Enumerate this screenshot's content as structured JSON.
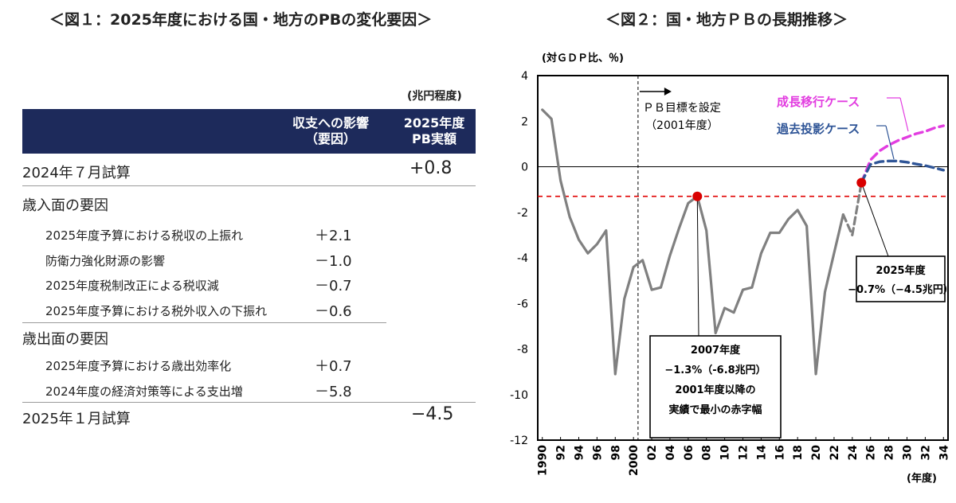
{
  "left_title": "＜図１：2025年度における国・地方のPBの変化要因＞",
  "right_title": "＜図２：国・地方ＰＢの長期推移＞",
  "table": {
    "unit": "(兆円程度)",
    "col1_header": [
      "収支への影響",
      "（要因）"
    ],
    "col2_header": [
      "2025年度",
      "PB実額"
    ],
    "start_label": "2024年７月試算",
    "start_value": "+0.8",
    "revenue_heading": "歳入面の要因",
    "revenue_items": [
      {
        "label": "2025年度予算における税収の上振れ",
        "value": "＋2.1"
      },
      {
        "label": "防衛力強化財源の影響",
        "value": "－1.0"
      },
      {
        "label": "2025年度税制改正による税収減",
        "value": "－0.7"
      },
      {
        "label": "2025年度予算における税外収入の下振れ",
        "value": "－0.6"
      }
    ],
    "expenditure_heading": "歳出面の要因",
    "expenditure_items": [
      {
        "label": "2025年度予算における歳出効率化",
        "value": "＋0.7"
      },
      {
        "label": "2024年度の経済対策等による支出増",
        "value": "－5.8"
      }
    ],
    "end_label": "2025年１月試算",
    "end_value": "−4.5"
  },
  "chart_data": {
    "type": "line",
    "ylabel": "(対ＧＤＰ比、％)",
    "xlabel": "(年度)",
    "ylim": [
      -12,
      4
    ],
    "xlim": [
      1989.5,
      2034.5
    ],
    "yticks": [
      4,
      2,
      0,
      -2,
      -4,
      -6,
      -8,
      -10,
      -12
    ],
    "xtick_labels": [
      "1990",
      "92",
      "94",
      "96",
      "98",
      "2000",
      "02",
      "04",
      "06",
      "08",
      "10",
      "12",
      "14",
      "16",
      "18",
      "20",
      "22",
      "24",
      "26",
      "28",
      "30",
      "32",
      "34"
    ],
    "series": [
      {
        "name": "",
        "style": "solid",
        "color": "#808080",
        "x": [
          1990,
          1991,
          1992,
          1993,
          1994,
          1995,
          1996,
          1997,
          1998,
          1999,
          2000,
          2001,
          2002,
          2003,
          2004,
          2005,
          2006,
          2007,
          2008,
          2009,
          2010,
          2011,
          2012,
          2013,
          2014,
          2015,
          2016,
          2017,
          2018,
          2019,
          2020,
          2021,
          2022,
          2023
        ],
        "y": [
          2.5,
          2.1,
          -0.6,
          -2.2,
          -3.2,
          -3.8,
          -3.4,
          -2.8,
          -9.1,
          -5.8,
          -4.4,
          -4.1,
          -5.4,
          -5.3,
          -3.9,
          -2.7,
          -1.6,
          -1.3,
          -2.8,
          -7.3,
          -6.2,
          -6.4,
          -5.4,
          -5.3,
          -3.8,
          -2.9,
          -2.9,
          -2.3,
          -1.9,
          -2.6,
          -9.1,
          -5.5,
          -3.8,
          -2.1
        ]
      },
      {
        "name": "",
        "style": "dashed",
        "color": "#808080",
        "x": [
          2023,
          2024,
          2025
        ],
        "y": [
          -2.1,
          -3.0,
          -0.7
        ]
      },
      {
        "name": "成長移行ケース",
        "style": "dashed",
        "color": "#e23de0",
        "x": [
          2025,
          2026,
          2027,
          2028,
          2029,
          2030,
          2031,
          2032,
          2033,
          2034
        ],
        "y": [
          -0.7,
          0.3,
          0.7,
          0.95,
          1.15,
          1.3,
          1.45,
          1.55,
          1.7,
          1.8
        ]
      },
      {
        "name": "過去投影ケース",
        "style": "dashed",
        "color": "#2f5597",
        "x": [
          2025,
          2026,
          2027,
          2028,
          2029,
          2030,
          2031,
          2032,
          2033,
          2034
        ],
        "y": [
          -0.7,
          0.1,
          0.22,
          0.25,
          0.25,
          0.2,
          0.12,
          0.05,
          -0.05,
          -0.15
        ]
      }
    ],
    "reference_line": {
      "y": -1.3,
      "color": "#e00000",
      "style": "dashed"
    },
    "vertical_marker": {
      "x": 2000.5,
      "style": "dashed",
      "label": [
        "ＰＢ目標を設定",
        "（2001年度）"
      ]
    },
    "highlight_points": [
      {
        "x": 2007,
        "y": -1.3,
        "color": "#d90000",
        "label": [
          "2007年度",
          "−1.3%（-6.8兆円）",
          "2001年度以降の",
          "実績で最小の赤字幅"
        ]
      },
      {
        "x": 2025,
        "y": -0.7,
        "color": "#d90000",
        "label": [
          "2025年度",
          "−0.7%（−4.5兆円）"
        ]
      }
    ]
  }
}
